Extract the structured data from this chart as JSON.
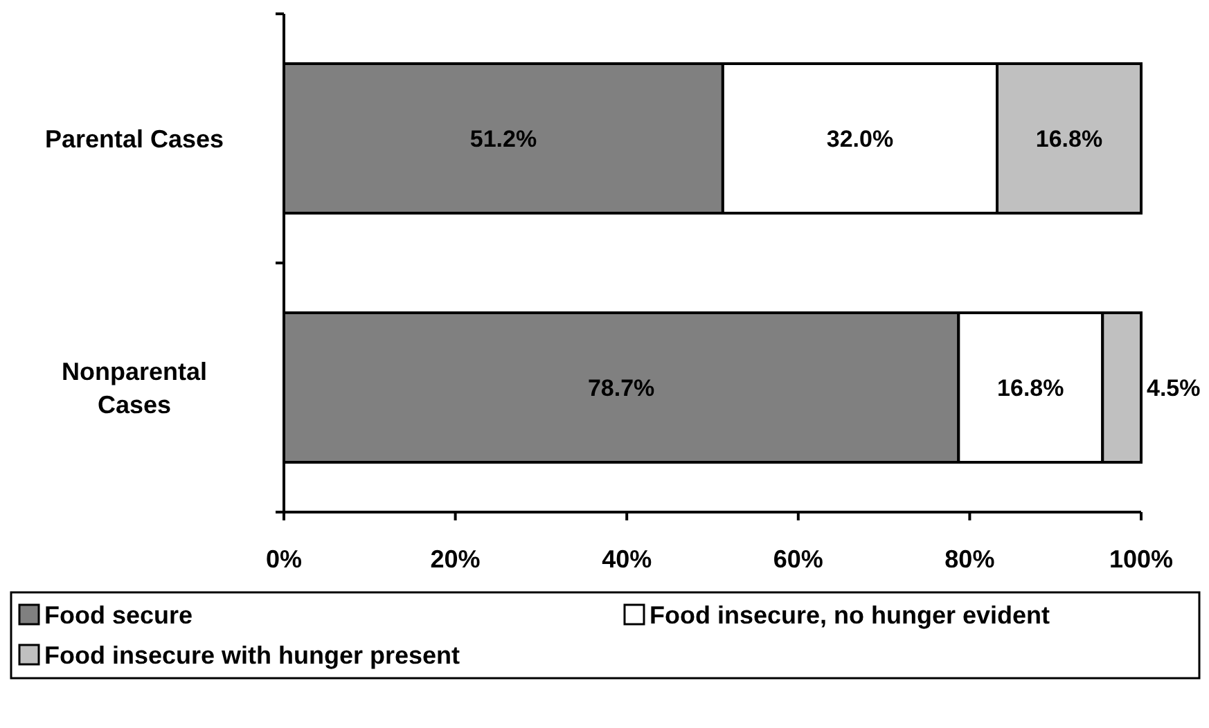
{
  "chart_data": {
    "type": "bar",
    "orientation": "horizontal",
    "stacked": true,
    "categories": [
      "Parental Cases",
      "Nonparental Cases"
    ],
    "series": [
      {
        "name": "Food secure",
        "color": "#808080",
        "values": [
          51.2,
          78.7
        ],
        "value_labels": [
          "51.2%",
          "78.7%"
        ]
      },
      {
        "name": "Food insecure, no hunger evident",
        "color": "#ffffff",
        "values": [
          32.0,
          16.8
        ],
        "value_labels": [
          "32.0%",
          "16.8%"
        ]
      },
      {
        "name": "Food insecure with hunger present",
        "color": "#c0c0c0",
        "values": [
          16.8,
          4.5
        ],
        "value_labels": [
          "16.8%",
          "4.5%"
        ]
      }
    ],
    "xlim": [
      0,
      100
    ],
    "xticks": [
      {
        "value": 0,
        "label": "0%"
      },
      {
        "value": 20,
        "label": "20%"
      },
      {
        "value": 40,
        "label": "40%"
      },
      {
        "value": 60,
        "label": "60%"
      },
      {
        "value": 80,
        "label": "80%"
      },
      {
        "value": 100,
        "label": "100%"
      }
    ],
    "grid": false,
    "legend": "bottom"
  }
}
